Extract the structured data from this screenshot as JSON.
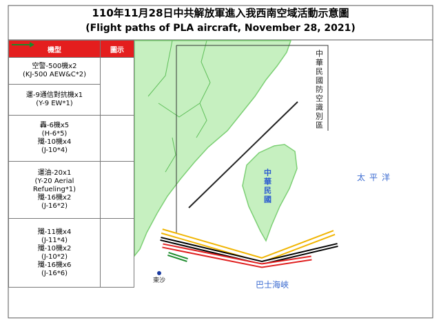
{
  "header": {
    "title": "110年11月28日中共解放軍進入我西南空域活動示意圖",
    "subtitle": "(Flight paths of PLA aircraft, November 28, 2021)"
  },
  "legend": {
    "columns": [
      "機型",
      "圖示"
    ],
    "rows": [
      {
        "aircraft": [
          [
            "空警-500機x2",
            "(KJ-500 AEW&C*2)"
          ],
          [
            "運-9通信對抗機x1",
            "(Y-9 EW*1)"
          ]
        ],
        "color": "#000000"
      },
      {
        "aircraft": [
          [
            "轟-6機x5",
            "(H-6*5)",
            "殲-10機x4",
            "(J-10*4)"
          ]
        ],
        "color": "#f0b400"
      },
      {
        "aircraft": [
          [
            "運油-20x1",
            "(Y-20 Aerial",
            "Refueling*1)",
            "殲-16機x2",
            "(J-16*2)"
          ]
        ],
        "color": "#e02020"
      },
      {
        "aircraft": [
          [
            "殲-11機x4",
            "(J-11*4)",
            "殲-10機x2",
            "(J-10*2)",
            "殲-16機x6",
            "(J-16*6)"
          ]
        ],
        "color": "#1a8a2a"
      }
    ]
  },
  "map_labels": {
    "adiz": "中華民國防空識別區",
    "taiwan": "中華民國",
    "pacific": "太平洋",
    "bashi": "巴士海峽",
    "dongsha": "東沙"
  }
}
